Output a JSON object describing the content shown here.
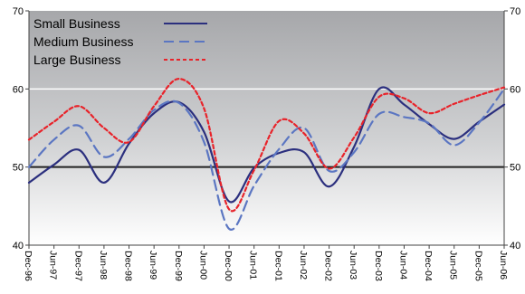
{
  "chart_data": {
    "type": "line",
    "title": "",
    "xlabel": "",
    "ylabel": "",
    "ylim": [
      40,
      70
    ],
    "yticks": [
      "40",
      "50",
      "60",
      "70"
    ],
    "x": [
      "Dec-96",
      "Jun-97",
      "Dec-97",
      "Jun-98",
      "Dec-98",
      "Jun-99",
      "Dec-99",
      "Jun-00",
      "Dec-00",
      "Jun-01",
      "Dec-01",
      "Jun-02",
      "Dec-02",
      "Jun-03",
      "Dec-03",
      "Jun-04",
      "Dec-04",
      "Jun-05",
      "Dec-05",
      "Jun-06"
    ],
    "reference_line": 50,
    "grid": "horizontal at 60",
    "legend_position": "top-left",
    "series": [
      {
        "name": "Small Business",
        "color": "#2b2f7e",
        "dash": "solid",
        "values": [
          48.0,
          50.3,
          52.2,
          48.0,
          53.0,
          56.9,
          58.3,
          54.5,
          45.6,
          49.9,
          51.8,
          51.9,
          47.5,
          52.6,
          60.0,
          58.0,
          55.5,
          53.6,
          55.8,
          58.0
        ]
      },
      {
        "name": "Medium Business",
        "color": "#5b76c2",
        "dash": "dashed",
        "values": [
          50.0,
          53.5,
          55.3,
          51.3,
          53.6,
          57.3,
          58.2,
          53.2,
          42.1,
          47.6,
          52.3,
          55.0,
          49.5,
          51.9,
          56.8,
          56.4,
          55.6,
          52.8,
          55.7,
          60.0
        ]
      },
      {
        "name": "Large Business",
        "color": "#e8232a",
        "dash": "dotted",
        "values": [
          53.5,
          55.8,
          57.8,
          55.0,
          53.2,
          57.8,
          61.3,
          57.5,
          44.6,
          49.6,
          55.9,
          54.3,
          49.8,
          53.8,
          59.0,
          58.8,
          56.9,
          58.1,
          59.2,
          60.2
        ]
      }
    ]
  }
}
